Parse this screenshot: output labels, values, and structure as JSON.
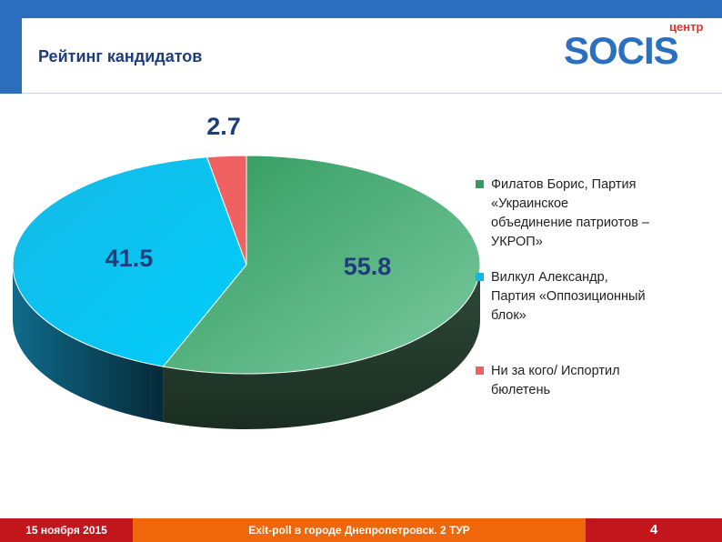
{
  "header": {
    "title": "Рейтинг кандидатов",
    "logo_sub": "центр",
    "logo_word": "SOCIS"
  },
  "footer": {
    "date": "15 ноября 2015",
    "caption": "Exit-poll в городе Днепропетровск. 2 ТУР",
    "page": "4"
  },
  "chart_data": {
    "type": "pie",
    "title": "Рейтинг кандидатов",
    "categories": [
      "Филатов Борис, Партия «Украинское объединение патриотов – УКРОП»",
      "Вилкул Александр, Партия «Оппозиционный блок»",
      "Ни за кого/ Испортил бюлетень"
    ],
    "values": [
      55.8,
      41.5,
      2.7
    ],
    "labels": [
      "55.8",
      "41.5",
      "2.7"
    ],
    "colors": [
      "#3fa06a",
      "#12c3f0",
      "#f06262"
    ],
    "legend": [
      {
        "lines": [
          "Филатов Борис, Партия",
          "«Украинское",
          "объединение патриотов –",
          "УКРОП»"
        ],
        "color": "#3a9a63"
      },
      {
        "lines": [
          "Вилкул Александр,",
          "Партия «Оппозиционный",
          "блок»"
        ],
        "color": "#0fb8e8"
      },
      {
        "lines": [
          "Ни за кого/ Испортил",
          "бюлетень"
        ],
        "color": "#f06262"
      }
    ],
    "legend_position": "right"
  }
}
